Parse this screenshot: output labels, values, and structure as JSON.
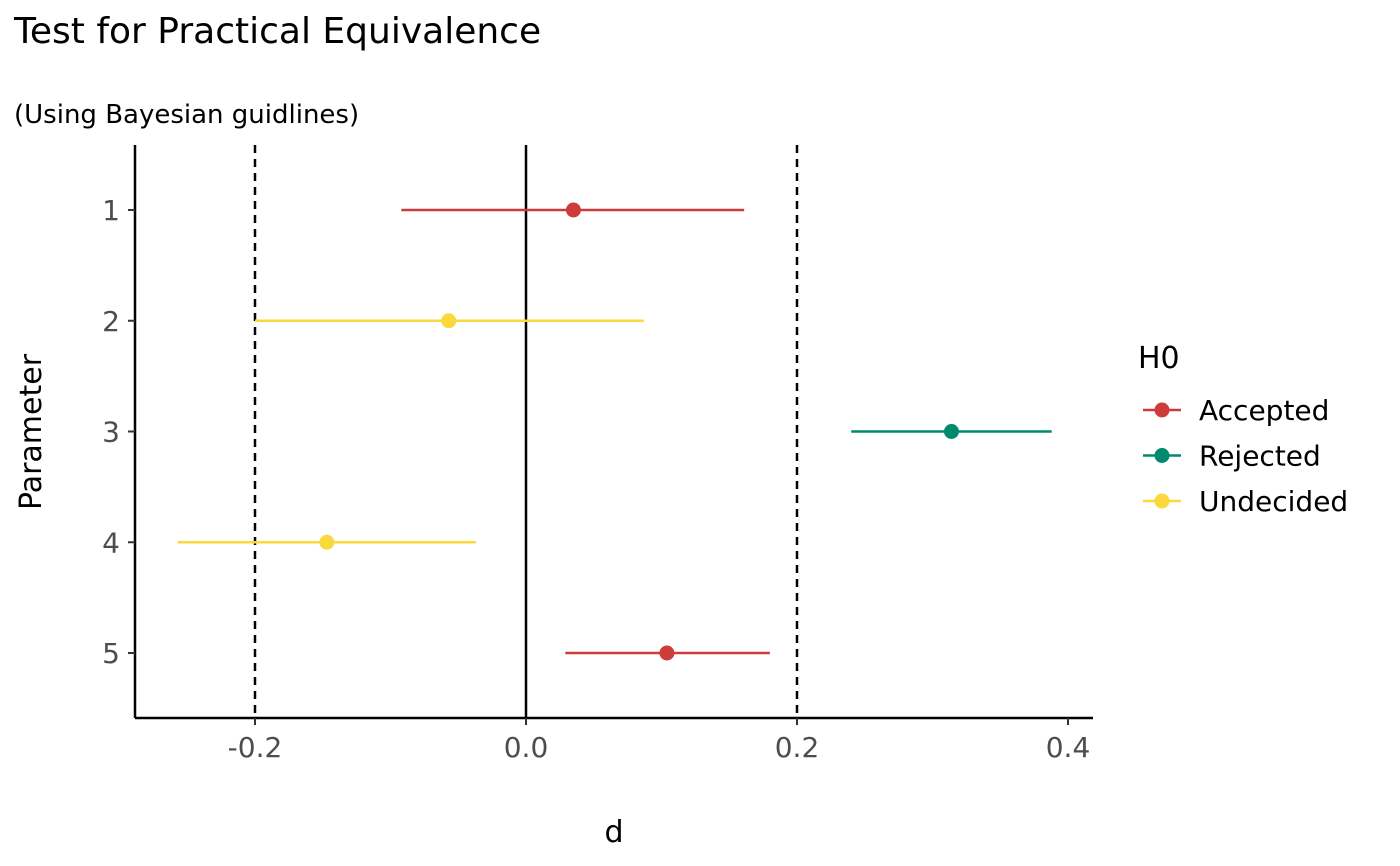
{
  "chart_data": {
    "type": "scatter",
    "title": "Test for Practical Equivalence",
    "subtitle": "(Using Bayesian guidlines)",
    "xlabel": "d",
    "ylabel": "Parameter",
    "xlim": [
      -0.29,
      0.42
    ],
    "x_ticks": [
      -0.2,
      0.0,
      0.2,
      0.4
    ],
    "x_tick_labels": [
      "-0.2",
      "0.0",
      "0.2",
      "0.4"
    ],
    "categories": [
      "1",
      "2",
      "3",
      "4",
      "5"
    ],
    "reference_lines": {
      "rope_low": -0.2,
      "rope_high": 0.2,
      "zero": 0.0
    },
    "legend": {
      "title": "H0",
      "placement": "right",
      "entries": [
        {
          "name": "Accepted",
          "color": "#cd3c3b"
        },
        {
          "name": "Rejected",
          "color": "#008a6d"
        },
        {
          "name": "Undecided",
          "color": "#fbd83b"
        }
      ]
    },
    "points": [
      {
        "parameter": "1",
        "estimate": 0.035,
        "low": -0.092,
        "high": 0.161,
        "status": "Accepted"
      },
      {
        "parameter": "2",
        "estimate": -0.057,
        "low": -0.2,
        "high": 0.087,
        "status": "Undecided"
      },
      {
        "parameter": "3",
        "estimate": 0.314,
        "low": 0.24,
        "high": 0.388,
        "status": "Rejected"
      },
      {
        "parameter": "4",
        "estimate": -0.147,
        "low": -0.257,
        "high": -0.037,
        "status": "Undecided"
      },
      {
        "parameter": "5",
        "estimate": 0.104,
        "low": 0.029,
        "high": 0.18,
        "status": "Accepted"
      }
    ],
    "grid": false
  }
}
